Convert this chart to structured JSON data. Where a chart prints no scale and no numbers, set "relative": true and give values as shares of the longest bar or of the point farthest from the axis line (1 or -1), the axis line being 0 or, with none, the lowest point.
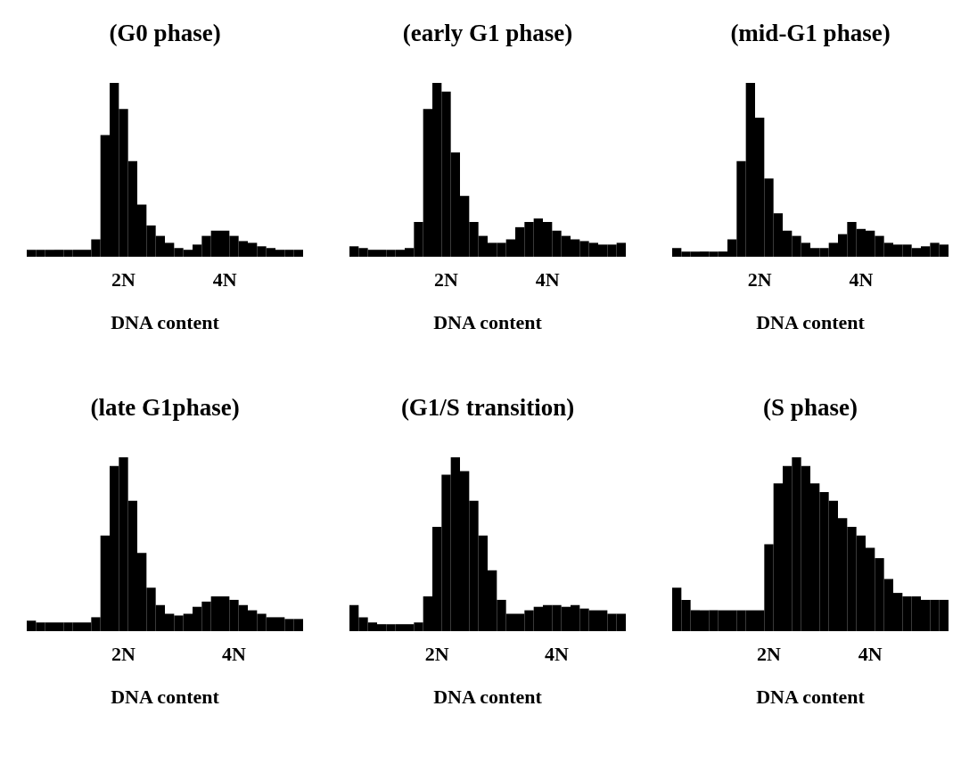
{
  "chart_data": [
    {
      "type": "bar",
      "relative": true,
      "title": "(G0 phase)",
      "xlabel": "DNA content",
      "color": "#000000",
      "categories": [
        null,
        null,
        null,
        null,
        null,
        null,
        null,
        null,
        null,
        null,
        "2N",
        null,
        null,
        null,
        null,
        null,
        null,
        null,
        null,
        null,
        null,
        "4N",
        null,
        null,
        null,
        null,
        null,
        null,
        null,
        null
      ],
      "values": [
        0.04,
        0.04,
        0.04,
        0.04,
        0.04,
        0.04,
        0.04,
        0.1,
        0.7,
        1.0,
        0.85,
        0.55,
        0.3,
        0.18,
        0.12,
        0.08,
        0.05,
        0.04,
        0.07,
        0.12,
        0.15,
        0.15,
        0.12,
        0.09,
        0.08,
        0.06,
        0.05,
        0.04,
        0.04,
        0.04
      ]
    },
    {
      "type": "bar",
      "relative": true,
      "title": "(early G1 phase)",
      "xlabel": "DNA content",
      "color": "#000000",
      "categories": [
        null,
        null,
        null,
        null,
        null,
        null,
        null,
        null,
        null,
        null,
        "2N",
        null,
        null,
        null,
        null,
        null,
        null,
        null,
        null,
        null,
        null,
        "4N",
        null,
        null,
        null,
        null,
        null,
        null,
        null,
        null
      ],
      "values": [
        0.06,
        0.05,
        0.04,
        0.04,
        0.04,
        0.04,
        0.05,
        0.2,
        0.85,
        1.0,
        0.95,
        0.6,
        0.35,
        0.2,
        0.12,
        0.08,
        0.08,
        0.1,
        0.17,
        0.2,
        0.22,
        0.2,
        0.15,
        0.12,
        0.1,
        0.09,
        0.08,
        0.07,
        0.07,
        0.08
      ]
    },
    {
      "type": "bar",
      "relative": true,
      "title": "(mid-G1 phase)",
      "xlabel": "DNA content",
      "color": "#000000",
      "categories": [
        null,
        null,
        null,
        null,
        null,
        null,
        null,
        null,
        null,
        "2N",
        null,
        null,
        null,
        null,
        null,
        null,
        null,
        null,
        null,
        null,
        "4N",
        null,
        null,
        null,
        null,
        null,
        null,
        null,
        null,
        null
      ],
      "values": [
        0.05,
        0.03,
        0.03,
        0.03,
        0.03,
        0.03,
        0.1,
        0.55,
        1.0,
        0.8,
        0.45,
        0.25,
        0.15,
        0.12,
        0.08,
        0.05,
        0.05,
        0.08,
        0.13,
        0.2,
        0.16,
        0.15,
        0.12,
        0.08,
        0.07,
        0.07,
        0.05,
        0.06,
        0.08,
        0.07
      ]
    },
    {
      "type": "bar",
      "relative": true,
      "title": "(late G1phase)",
      "xlabel": "DNA content",
      "color": "#000000",
      "categories": [
        null,
        null,
        null,
        null,
        null,
        null,
        null,
        null,
        null,
        null,
        "2N",
        null,
        null,
        null,
        null,
        null,
        null,
        null,
        null,
        null,
        null,
        null,
        "4N",
        null,
        null,
        null,
        null,
        null,
        null,
        null
      ],
      "values": [
        0.06,
        0.05,
        0.05,
        0.05,
        0.05,
        0.05,
        0.05,
        0.08,
        0.55,
        0.95,
        1.0,
        0.75,
        0.45,
        0.25,
        0.15,
        0.1,
        0.09,
        0.1,
        0.14,
        0.17,
        0.2,
        0.2,
        0.18,
        0.15,
        0.12,
        0.1,
        0.08,
        0.08,
        0.07,
        0.07
      ]
    },
    {
      "type": "bar",
      "relative": true,
      "title": "(G1/S transition)",
      "xlabel": "DNA content",
      "color": "#000000",
      "categories": [
        null,
        null,
        null,
        null,
        null,
        null,
        null,
        null,
        null,
        "2N",
        null,
        null,
        null,
        null,
        null,
        null,
        null,
        null,
        null,
        null,
        null,
        null,
        "4N",
        null,
        null,
        null,
        null,
        null,
        null,
        null
      ],
      "values": [
        0.15,
        0.08,
        0.05,
        0.04,
        0.04,
        0.04,
        0.04,
        0.05,
        0.2,
        0.6,
        0.9,
        1.0,
        0.92,
        0.75,
        0.55,
        0.35,
        0.18,
        0.1,
        0.1,
        0.12,
        0.14,
        0.15,
        0.15,
        0.14,
        0.15,
        0.13,
        0.12,
        0.12,
        0.1,
        0.1
      ]
    },
    {
      "type": "bar",
      "relative": true,
      "title": "(S phase)",
      "xlabel": "DNA content",
      "color": "#000000",
      "categories": [
        null,
        null,
        null,
        null,
        null,
        null,
        null,
        null,
        null,
        null,
        "2N",
        null,
        null,
        null,
        null,
        null,
        null,
        null,
        null,
        null,
        null,
        "4N",
        null,
        null,
        null,
        null,
        null,
        null,
        null,
        null
      ],
      "values": [
        0.25,
        0.18,
        0.12,
        0.12,
        0.12,
        0.12,
        0.12,
        0.12,
        0.12,
        0.12,
        0.5,
        0.85,
        0.95,
        1.0,
        0.95,
        0.85,
        0.8,
        0.75,
        0.65,
        0.6,
        0.55,
        0.48,
        0.42,
        0.3,
        0.22,
        0.2,
        0.2,
        0.18,
        0.18,
        0.18
      ]
    }
  ]
}
